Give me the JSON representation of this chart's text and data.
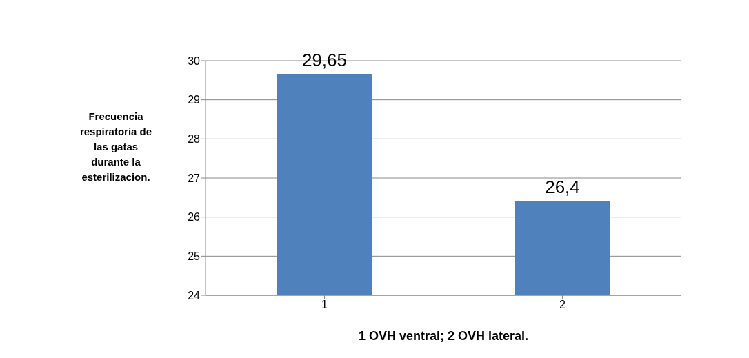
{
  "chart_data": {
    "type": "bar",
    "xlabel": "1 OVH ventral; 2 OVH lateral.",
    "ylabel": "Frecuencia respiratoria de las gatas durante la esterilizacion.",
    "categories": [
      "1",
      "2"
    ],
    "values": [
      29.65,
      26.4
    ],
    "color": "#4f81bd",
    "ylim": [
      24,
      30
    ],
    "yticks": [
      24,
      25,
      26,
      27,
      28,
      29,
      30
    ],
    "grid": "y",
    "value_labels": [
      "29,65",
      "26,4"
    ]
  }
}
